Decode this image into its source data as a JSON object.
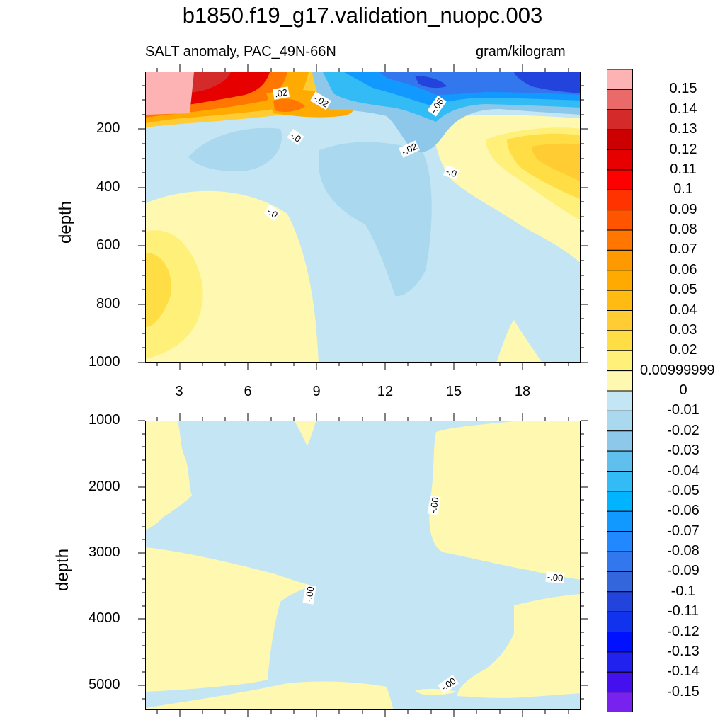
{
  "title": "b1850.f19_g17.validation_nuopc.003",
  "chart_data": {
    "type": "heatmap",
    "title": "b1850.f19_g17.validation_nuopc.003",
    "subtitle_left": "SALT anomaly, PAC_49N-66N",
    "subtitle_right": "gram/kilogram",
    "ylabel": "depth",
    "x_ticks": [
      "3",
      "6",
      "9",
      "12",
      "15",
      "18"
    ],
    "x_range": [
      1.5,
      20.5
    ],
    "top_panel": {
      "ylabel": "depth",
      "y_ticks": [
        "200",
        "400",
        "600",
        "800",
        "1000"
      ],
      "y_range": [
        0,
        1000
      ],
      "contour_labels": [
        ".02",
        "-.02",
        "-.0",
        "-.02",
        "-.06",
        "-.0",
        "-.0"
      ]
    },
    "bottom_panel": {
      "ylabel": "depth",
      "y_ticks": [
        "1000",
        "2000",
        "3000",
        "4000",
        "5000"
      ],
      "y_range": [
        1000,
        5375
      ],
      "contour_labels": [
        "-.00",
        "-.00",
        "-.00",
        "-.00"
      ]
    },
    "colorbar": {
      "labels": [
        "0.15",
        "0.14",
        "0.13",
        "0.12",
        "0.11",
        "0.1",
        "0.09",
        "0.08",
        "0.07",
        "0.06",
        "0.05",
        "0.04",
        "0.03",
        "0.02",
        "0.00999999",
        "0",
        "-0.01",
        "-0.02",
        "-0.03",
        "-0.04",
        "-0.05",
        "-0.06",
        "-0.07",
        "-0.08",
        "-0.09",
        "-0.1",
        "-0.11",
        "-0.12",
        "-0.13",
        "-0.14",
        "-0.15"
      ],
      "colors": [
        "#fdb2b4",
        "#ea6a6a",
        "#d42a2a",
        "#cc0000",
        "#e60000",
        "#ff0000",
        "#ff3300",
        "#ff5500",
        "#ff7700",
        "#ff9900",
        "#ffaa00",
        "#ffbb11",
        "#ffcc33",
        "#ffdd44",
        "#fff07a",
        "#fff8b0",
        "#c4e6f4",
        "#aad8ee",
        "#8dc8ea",
        "#5fc0ee",
        "#33bbf5",
        "#00b4ff",
        "#1199ff",
        "#2288ff",
        "#3377ee",
        "#3366dd",
        "#2244dd",
        "#1133ee",
        "#0011ff",
        "#2222ee",
        "#4411ee",
        "#7722ee"
      ]
    }
  }
}
